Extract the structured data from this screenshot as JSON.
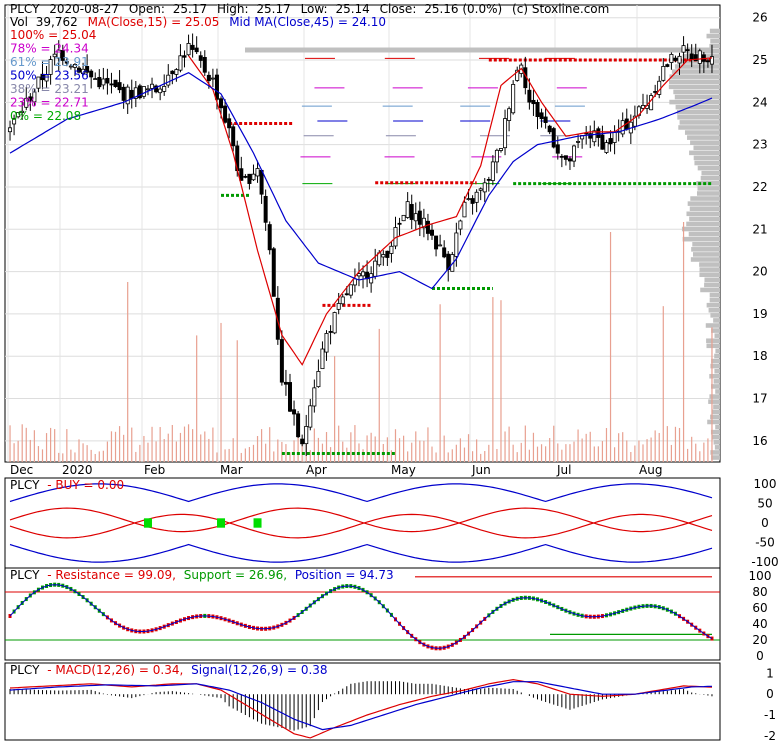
{
  "header": {
    "symbol": "PLCY",
    "date": "2020-08-27",
    "open_label": "Open:",
    "open": "25.17",
    "high_label": "High:",
    "high": "25.17",
    "low_label": "Low:",
    "low": "25.14",
    "close_label": "Close:",
    "close": "25.16 (0.0%)",
    "source": "(c) Stoxline.com",
    "volume_label": "Vol",
    "volume": "39,762",
    "ma_label": "MA(Close,15) = 25.05",
    "mid_ma_label": "Mid MA(Close,45) = 24.10"
  },
  "fib_levels": [
    {
      "label": "100% = 25.04",
      "color": "#dd0000",
      "value": 25.04
    },
    {
      "label": "78% = 24.34",
      "color": "#cc00cc",
      "value": 24.34
    },
    {
      "label": "61% = 23.91",
      "color": "#6699cc",
      "value": 23.91
    },
    {
      "label": "50% = 23.56",
      "color": "#0000cc",
      "value": 23.56
    },
    {
      "label": "38% = 23.21",
      "color": "#8888aa",
      "value": 23.21
    },
    {
      "label": "23% = 22.71",
      "color": "#cc00cc",
      "value": 22.71
    },
    {
      "label": "0% = 22.08",
      "color": "#00aa00",
      "value": 22.08
    }
  ],
  "colors": {
    "ma15": "#dd0000",
    "ma45": "#0000cc",
    "volume": "#e8a090",
    "candle": "#000000",
    "resistance_red": "#dd0000",
    "support_green": "#009900",
    "price_profile": "#c0c0c0",
    "buy_green": "#00dd00"
  },
  "chart_data": [
    {
      "type": "candlestick",
      "title": "PLCY 2020-08-27",
      "x_labels": [
        "Dec",
        "2020",
        "Feb",
        "Mar",
        "Apr",
        "May",
        "Jun",
        "Jul",
        "Aug"
      ],
      "y_ticks": [
        16,
        17,
        18,
        19,
        20,
        21,
        22,
        23,
        24,
        25,
        26
      ],
      "ylim": [
        15.5,
        26.3
      ],
      "ohlc_anchors": [
        [
          0,
          23.4
        ],
        [
          12,
          25.2
        ],
        [
          20,
          24.6
        ],
        [
          28,
          24.2
        ],
        [
          36,
          24.3
        ],
        [
          44,
          25.3
        ],
        [
          50,
          24.5
        ],
        [
          55,
          23.0
        ],
        [
          57,
          22.0
        ],
        [
          61,
          22.5
        ],
        [
          64,
          20.5
        ],
        [
          67,
          17.5
        ],
        [
          70,
          16.5
        ],
        [
          72,
          15.8
        ],
        [
          74,
          17.0
        ],
        [
          78,
          18.5
        ],
        [
          83,
          19.5
        ],
        [
          88,
          20.0
        ],
        [
          93,
          20.5
        ],
        [
          98,
          21.5
        ],
        [
          103,
          21.0
        ],
        [
          108,
          20.2
        ],
        [
          112,
          21.5
        ],
        [
          117,
          22.0
        ],
        [
          121,
          23.0
        ],
        [
          124,
          24.5
        ],
        [
          126,
          25.0
        ],
        [
          128,
          24.0
        ],
        [
          132,
          23.5
        ],
        [
          137,
          22.5
        ],
        [
          142,
          23.3
        ],
        [
          147,
          23.0
        ],
        [
          152,
          23.5
        ],
        [
          157,
          24.0
        ],
        [
          161,
          24.8
        ],
        [
          165,
          25.2
        ],
        [
          170,
          25.1
        ],
        [
          173,
          25.16
        ]
      ],
      "ma15_anchors": [
        [
          44,
          25.1
        ],
        [
          50,
          24.3
        ],
        [
          55,
          22.8
        ],
        [
          61,
          20.5
        ],
        [
          67,
          18.5
        ],
        [
          72,
          17.8
        ],
        [
          78,
          19.0
        ],
        [
          86,
          20.0
        ],
        [
          95,
          20.8
        ],
        [
          103,
          21.1
        ],
        [
          110,
          21.3
        ],
        [
          116,
          22.5
        ],
        [
          121,
          24.4
        ],
        [
          126,
          24.8
        ],
        [
          131,
          24.0
        ],
        [
          137,
          23.2
        ],
        [
          143,
          23.3
        ],
        [
          149,
          23.3
        ],
        [
          155,
          23.7
        ],
        [
          161,
          24.4
        ],
        [
          167,
          25.0
        ],
        [
          173,
          25.05
        ]
      ],
      "ma45_anchors": [
        [
          0,
          22.8
        ],
        [
          14,
          23.6
        ],
        [
          28,
          24.0
        ],
        [
          44,
          24.7
        ],
        [
          52,
          24.2
        ],
        [
          60,
          22.8
        ],
        [
          68,
          21.2
        ],
        [
          76,
          20.2
        ],
        [
          86,
          19.8
        ],
        [
          96,
          20.0
        ],
        [
          104,
          19.6
        ],
        [
          110,
          20.3
        ],
        [
          118,
          21.8
        ],
        [
          124,
          22.6
        ],
        [
          130,
          23.0
        ],
        [
          140,
          23.2
        ],
        [
          150,
          23.3
        ],
        [
          160,
          23.6
        ],
        [
          168,
          23.9
        ],
        [
          173,
          24.1
        ]
      ],
      "support_lines": [
        {
          "x0": 52,
          "x1": 59,
          "value": 21.8
        },
        {
          "x0": 67,
          "x1": 95,
          "value": 15.7
        },
        {
          "x0": 104,
          "x1": 119,
          "value": 19.6
        },
        {
          "x0": 124,
          "x1": 173,
          "value": 22.08
        }
      ],
      "resistance_lines": [
        {
          "x0": 54,
          "x1": 70,
          "value": 23.5
        },
        {
          "x0": 77,
          "x1": 89,
          "value": 19.2
        },
        {
          "x0": 90,
          "x1": 115,
          "value": 22.1
        },
        {
          "x0": 118,
          "x1": 173,
          "value": 25.0
        }
      ]
    },
    {
      "type": "line",
      "title": "PLCY - BUY = 0.00",
      "y_ticks": [
        100,
        50,
        0,
        -50,
        -100
      ],
      "ylim": [
        -115,
        115
      ],
      "buy_signal_days": [
        34,
        52,
        61
      ]
    },
    {
      "type": "line",
      "title": "PLCY - Resistance = 99.09, Support = 26.96, Position = 94.73",
      "series": [
        {
          "name": "Resistance",
          "last": 99.09
        },
        {
          "name": "Support",
          "last": 26.96
        },
        {
          "name": "Position",
          "last": 94.73
        }
      ],
      "y_ticks": [
        100,
        80,
        60,
        40,
        20,
        0
      ],
      "ylim": [
        0,
        105
      ]
    },
    {
      "type": "line",
      "title": "PLCY - MACD(12,26) = 0.34, Signal(12,26,9) = 0.38",
      "series": [
        {
          "name": "MACD(12,26)",
          "last": 0.34
        },
        {
          "name": "Signal(12,26,9)",
          "last": 0.38
        }
      ],
      "y_ticks": [
        1,
        0,
        -1,
        -2
      ],
      "ylim": [
        -2.2,
        1.5
      ],
      "macd_anchors": [
        [
          0,
          0.3
        ],
        [
          10,
          0.4
        ],
        [
          20,
          0.5
        ],
        [
          30,
          0.35
        ],
        [
          40,
          0.5
        ],
        [
          46,
          0.5
        ],
        [
          52,
          0.2
        ],
        [
          58,
          -0.5
        ],
        [
          64,
          -1.2
        ],
        [
          70,
          -1.9
        ],
        [
          74,
          -2.1
        ],
        [
          80,
          -1.6
        ],
        [
          88,
          -1.0
        ],
        [
          96,
          -0.5
        ],
        [
          104,
          -0.1
        ],
        [
          112,
          0.2
        ],
        [
          118,
          0.5
        ],
        [
          124,
          0.7
        ],
        [
          130,
          0.5
        ],
        [
          138,
          0.0
        ],
        [
          146,
          -0.1
        ],
        [
          154,
          0.0
        ],
        [
          160,
          0.2
        ],
        [
          166,
          0.4
        ],
        [
          173,
          0.34
        ]
      ],
      "signal_anchors": [
        [
          0,
          0.2
        ],
        [
          12,
          0.35
        ],
        [
          24,
          0.45
        ],
        [
          36,
          0.4
        ],
        [
          46,
          0.5
        ],
        [
          54,
          0.2
        ],
        [
          62,
          -0.4
        ],
        [
          70,
          -1.2
        ],
        [
          77,
          -1.7
        ],
        [
          84,
          -1.5
        ],
        [
          92,
          -1.0
        ],
        [
          100,
          -0.5
        ],
        [
          108,
          -0.1
        ],
        [
          116,
          0.3
        ],
        [
          124,
          0.6
        ],
        [
          130,
          0.6
        ],
        [
          138,
          0.3
        ],
        [
          146,
          0.0
        ],
        [
          154,
          0.0
        ],
        [
          162,
          0.2
        ],
        [
          168,
          0.35
        ],
        [
          173,
          0.38
        ]
      ]
    }
  ]
}
